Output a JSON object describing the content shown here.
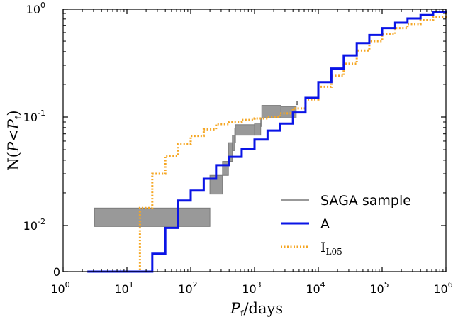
{
  "chart_data": {
    "type": "line",
    "xlabel": {
      "italic": "P",
      "sub": "f",
      "rest": "/days"
    },
    "ylabel": {
      "prefix": "N(",
      "italic1": "P",
      "op": "<",
      "italic2": "P",
      "sub": "f",
      "suffix": ")"
    },
    "xscale": "log",
    "yscale": "log",
    "xlim": [
      1,
      1000000
    ],
    "ylim": [
      0,
      1
    ],
    "x_ticks": [
      {
        "base": "10",
        "exp": "0"
      },
      {
        "base": "10",
        "exp": "1"
      },
      {
        "base": "10",
        "exp": "2"
      },
      {
        "base": "10",
        "exp": "3"
      },
      {
        "base": "10",
        "exp": "4"
      },
      {
        "base": "10",
        "exp": "5"
      },
      {
        "base": "10",
        "exp": "6"
      }
    ],
    "y_ticks": [
      {
        "base": "0",
        "exp": ""
      },
      {
        "base": "10",
        "exp": "-2"
      },
      {
        "base": "10",
        "exp": "-1"
      },
      {
        "base": "10",
        "exp": "0"
      }
    ],
    "legend_position": "lower-right",
    "series": [
      {
        "name": "SAGA sample",
        "kind": "band",
        "color": "#999999",
        "steps": [
          [
            3.1,
            0.0098,
            0.0145
          ],
          [
            200,
            0.0195,
            0.029
          ],
          [
            315,
            0.029,
            0.039
          ],
          [
            390,
            0.039,
            0.058
          ],
          [
            450,
            0.049,
            0.068
          ],
          [
            490,
            0.058,
            0.078
          ],
          [
            500,
            0.068,
            0.085
          ],
          [
            1000,
            0.068,
            0.088
          ],
          [
            1250,
            0.082,
            0.098
          ],
          [
            1300,
            0.098,
            0.128
          ],
          [
            2600,
            0.098,
            0.125
          ],
          [
            4500,
            0.13,
            0.14
          ]
        ]
      },
      {
        "name": "A",
        "kind": "step",
        "color": "#0a14e6",
        "x": [
          2.4,
          12,
          16,
          25,
          40,
          63,
          100,
          160,
          250,
          400,
          630,
          1000,
          1600,
          2500,
          4000,
          6300,
          10000,
          16000,
          25000,
          40000,
          63000,
          100000,
          160000,
          250000,
          400000,
          630000,
          1000000
        ],
        "y": [
          0.0005,
          0.0005,
          0.0025,
          0.0055,
          0.0095,
          0.017,
          0.021,
          0.027,
          0.036,
          0.043,
          0.051,
          0.062,
          0.075,
          0.087,
          0.11,
          0.15,
          0.21,
          0.28,
          0.37,
          0.48,
          0.57,
          0.66,
          0.74,
          0.81,
          0.87,
          0.92,
          0.96
        ]
      },
      {
        "name": "I",
        "name_sub": "L05",
        "kind": "step",
        "color": "#f5a623",
        "x": [
          2.4,
          10,
          16,
          25,
          40,
          63,
          100,
          160,
          250,
          400,
          630,
          1000,
          1600,
          2500,
          4000,
          6300,
          10000,
          16000,
          25000,
          40000,
          63000,
          100000,
          160000,
          250000,
          400000,
          630000,
          1000000
        ],
        "y": [
          0.001,
          0.0015,
          0.0145,
          0.03,
          0.044,
          0.056,
          0.067,
          0.077,
          0.086,
          0.09,
          0.094,
          0.097,
          0.1,
          0.108,
          0.12,
          0.145,
          0.19,
          0.24,
          0.31,
          0.41,
          0.5,
          0.58,
          0.66,
          0.72,
          0.78,
          0.84,
          0.9
        ]
      }
    ]
  }
}
